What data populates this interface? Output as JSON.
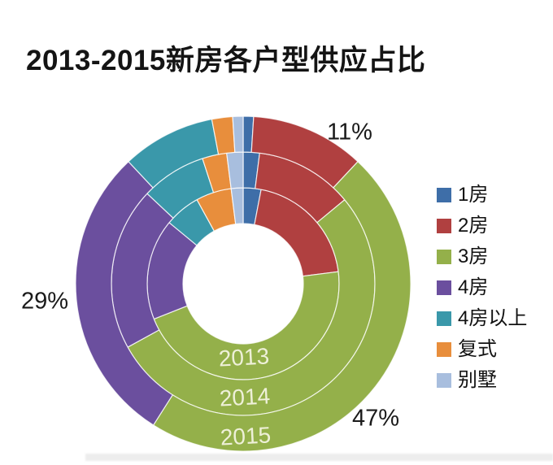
{
  "header": {
    "title": "2013-2015新房各户型供应占比"
  },
  "legend": {
    "items": [
      {
        "label": "1房",
        "color": "#3e6ea8"
      },
      {
        "label": "2房",
        "color": "#b04040"
      },
      {
        "label": "3房",
        "color": "#94b04a"
      },
      {
        "label": "4房",
        "color": "#6b4f9e"
      },
      {
        "label": "4房以上",
        "color": "#3a98aa"
      },
      {
        "label": "复式",
        "color": "#e88e3c"
      },
      {
        "label": "别墅",
        "color": "#a8bede"
      }
    ]
  },
  "chart_data": {
    "type": "pie",
    "subtype": "multi-ring-doughnut",
    "title": "2013-2015新房各户型供应占比",
    "unit": "%",
    "categories": [
      "1房",
      "2房",
      "3房",
      "4房",
      "4房以上",
      "复式",
      "别墅"
    ],
    "colors": [
      "#3e6ea8",
      "#b04040",
      "#94b04a",
      "#6b4f9e",
      "#3a98aa",
      "#e88e3c",
      "#a8bede"
    ],
    "series": [
      {
        "name": "2013",
        "ring": "inner",
        "values": [
          3,
          20,
          46,
          17,
          6,
          6,
          2
        ]
      },
      {
        "name": "2014",
        "ring": "middle",
        "values": [
          2,
          12,
          53,
          20,
          8,
          3,
          2
        ]
      },
      {
        "name": "2015",
        "ring": "outer",
        "values": [
          1,
          11,
          47,
          29,
          9,
          2,
          1
        ]
      }
    ],
    "annotations": [
      {
        "text": "11%",
        "series": "2015",
        "category": "2房"
      },
      {
        "text": "29%",
        "series": "2015",
        "category": "4房"
      },
      {
        "text": "47%",
        "series": "2015",
        "category": "3房"
      }
    ],
    "start_angle_deg": 0,
    "direction": "clockwise",
    "legend_position": "right",
    "ring_label_color": "#eef0d8"
  }
}
